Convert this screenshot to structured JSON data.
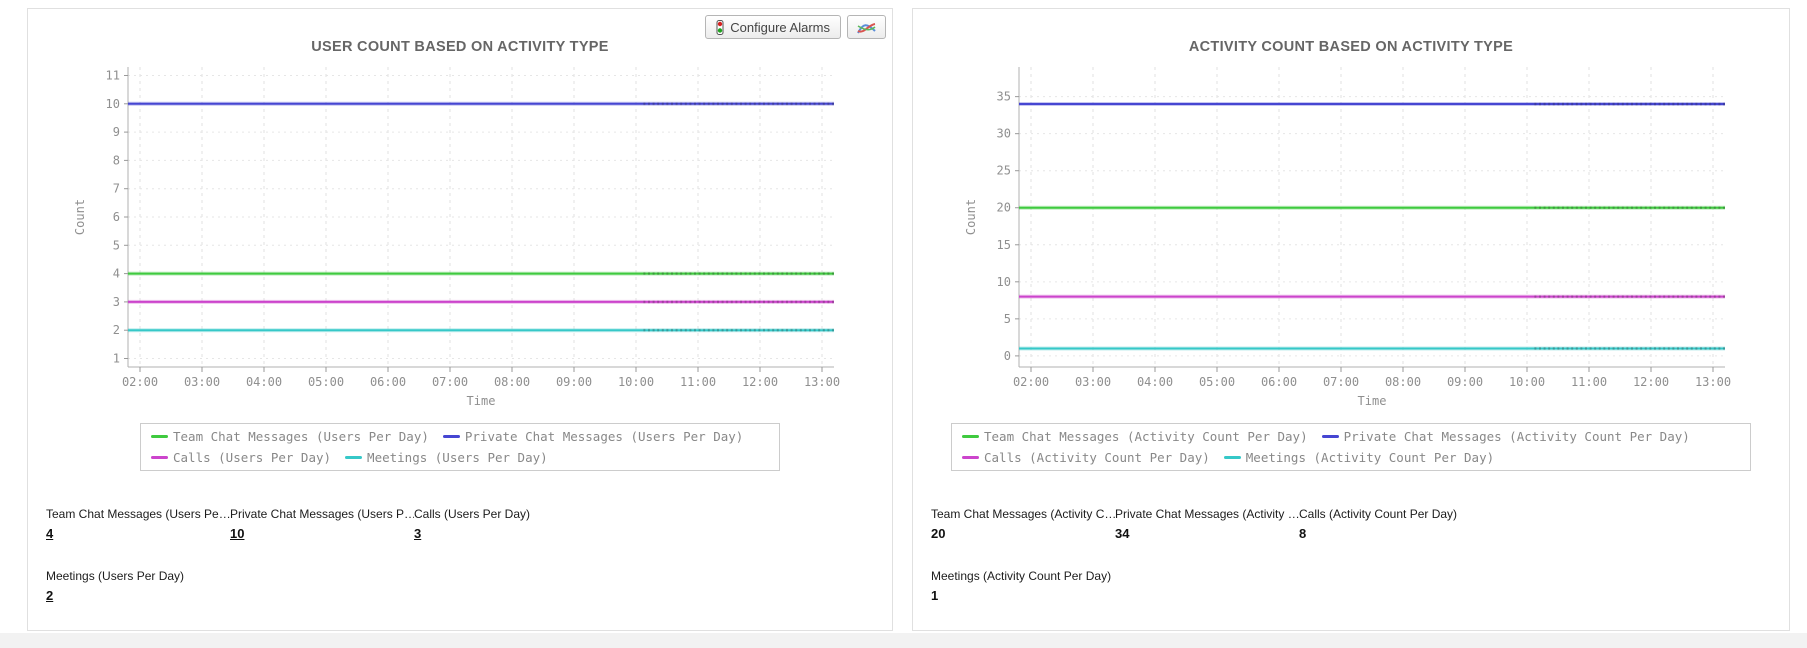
{
  "panels": [
    {
      "toolbar": {
        "configure_alarms_label": "Configure Alarms"
      },
      "stats": [
        {
          "label": "Team Chat Messages (Users Pe…",
          "value": "4",
          "underlined": true
        },
        {
          "label": "Private Chat Messages (Users P…",
          "value": "10",
          "underlined": true
        },
        {
          "label": "Calls (Users Per Day)",
          "value": "3",
          "underlined": true
        },
        {
          "label": "Meetings (Users Per Day)",
          "value": "2",
          "underlined": true
        }
      ]
    },
    {
      "stats": [
        {
          "label": "Team Chat Messages (Activity C…",
          "value": "20",
          "underlined": false
        },
        {
          "label": "Private Chat Messages (Activity …",
          "value": "34",
          "underlined": false
        },
        {
          "label": "Calls (Activity Count Per Day)",
          "value": "8",
          "underlined": false
        },
        {
          "label": "Meetings (Activity Count Per Day)",
          "value": "1",
          "underlined": false
        }
      ]
    }
  ],
  "chart_data": [
    {
      "type": "line",
      "title": "USER COUNT BASED ON ACTIVITY TYPE",
      "x": [
        "02:00",
        "03:00",
        "04:00",
        "05:00",
        "06:00",
        "07:00",
        "08:00",
        "09:00",
        "10:00",
        "11:00",
        "12:00",
        "13:00"
      ],
      "xlabel": "Time",
      "ylabel": "Count",
      "ylim": [
        0.7,
        11.3
      ],
      "yticks": [
        1,
        2,
        3,
        4,
        5,
        6,
        7,
        8,
        9,
        10,
        11
      ],
      "grid": true,
      "legend_position": "bottom",
      "series": [
        {
          "name": "Team Chat Messages (Users Per Day)",
          "color": "#3fca3f",
          "value": 4
        },
        {
          "name": "Private Chat Messages (Users Per Day)",
          "color": "#4646d2",
          "value": 10
        },
        {
          "name": "Calls (Users Per Day)",
          "color": "#cc44cc",
          "value": 3
        },
        {
          "name": "Meetings (Users Per Day)",
          "color": "#36c8c8",
          "value": 2
        }
      ]
    },
    {
      "type": "line",
      "title": "ACTIVITY COUNT BASED ON ACTIVITY TYPE",
      "x": [
        "02:00",
        "03:00",
        "04:00",
        "05:00",
        "06:00",
        "07:00",
        "08:00",
        "09:00",
        "10:00",
        "11:00",
        "12:00",
        "13:00"
      ],
      "xlabel": "Time",
      "ylabel": "Count",
      "ylim": [
        -1.5,
        39
      ],
      "yticks": [
        0,
        5,
        10,
        15,
        20,
        25,
        30,
        35
      ],
      "grid": true,
      "legend_position": "bottom",
      "series": [
        {
          "name": "Team Chat Messages (Activity Count Per Day)",
          "color": "#3fca3f",
          "value": 20
        },
        {
          "name": "Private Chat Messages (Activity Count Per Day)",
          "color": "#4646d2",
          "value": 34
        },
        {
          "name": "Calls (Activity Count Per Day)",
          "color": "#cc44cc",
          "value": 8
        },
        {
          "name": "Meetings (Activity Count Per Day)",
          "color": "#36c8c8",
          "value": 1
        }
      ]
    }
  ]
}
